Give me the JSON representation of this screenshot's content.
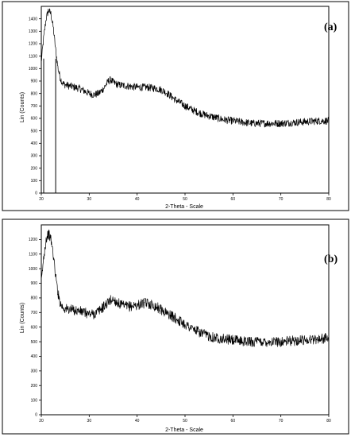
{
  "chart_data": [
    {
      "type": "line",
      "panel_label": "(a)",
      "xlabel": "2-Theta - Scale",
      "ylabel": "Lin (Counts)",
      "xlim": [
        20,
        80
      ],
      "ylim": [
        0,
        1500
      ],
      "xticks": [
        20,
        30,
        40,
        50,
        60,
        70,
        80
      ],
      "yticks": [
        0,
        100,
        200,
        300,
        400,
        500,
        600,
        700,
        800,
        900,
        1000,
        1100,
        1200,
        1300,
        1400
      ],
      "ytick_labels": [
        "0",
        "100",
        "200",
        "300",
        "400",
        "500",
        "600",
        "700",
        "800",
        "900",
        "1000",
        "1100",
        "1200",
        "1300",
        "1400"
      ],
      "grid": false,
      "vertical_markers": [
        20.5,
        23.0
      ],
      "noise_amplitude": 30,
      "x": [
        20,
        20.5,
        21,
        21.5,
        22,
        22.5,
        23,
        23.5,
        24,
        24.5,
        25,
        26,
        27,
        28,
        29,
        30,
        31,
        32,
        33,
        34,
        34.5,
        35,
        36,
        37,
        38,
        39,
        40,
        41,
        42,
        43,
        44,
        45,
        46,
        47,
        48,
        50,
        52,
        54,
        56,
        58,
        60,
        62,
        64,
        66,
        68,
        70,
        72,
        74,
        76,
        78,
        80
      ],
      "y": [
        1050,
        1250,
        1400,
        1470,
        1440,
        1330,
        1150,
        1000,
        920,
        880,
        870,
        860,
        850,
        840,
        820,
        800,
        790,
        800,
        840,
        900,
        910,
        890,
        870,
        865,
        860,
        855,
        850,
        850,
        850,
        845,
        840,
        830,
        810,
        780,
        750,
        700,
        660,
        630,
        610,
        590,
        580,
        570,
        560,
        560,
        560,
        560,
        565,
        570,
        575,
        580,
        580
      ]
    },
    {
      "type": "line",
      "panel_label": "(b)",
      "xlabel": "2-Theta - Scale",
      "ylabel": "Lin (Counts)",
      "xlim": [
        20,
        80
      ],
      "ylim": [
        0,
        1300
      ],
      "xticks": [
        20,
        30,
        40,
        50,
        60,
        70,
        80
      ],
      "yticks": [
        0,
        100,
        200,
        300,
        400,
        500,
        600,
        700,
        800,
        900,
        1000,
        1100,
        1200
      ],
      "ytick_labels": [
        "0",
        "100",
        "200",
        "300",
        "400",
        "500",
        "600",
        "700",
        "800",
        "900",
        "1000",
        "1100",
        "1200"
      ],
      "grid": false,
      "vertical_markers": [],
      "noise_amplitude": 35,
      "x": [
        20,
        20.5,
        21,
        21.5,
        22,
        22.5,
        23,
        23.5,
        24,
        24.5,
        25,
        26,
        27,
        28,
        29,
        30,
        31,
        32,
        33,
        34,
        34.5,
        35,
        36,
        37,
        38,
        39,
        40,
        41,
        42,
        43,
        44,
        45,
        46,
        47,
        48,
        50,
        52,
        54,
        56,
        58,
        60,
        62,
        64,
        66,
        68,
        70,
        72,
        74,
        76,
        78,
        80
      ],
      "y": [
        900,
        1080,
        1200,
        1240,
        1200,
        1100,
        950,
        830,
        760,
        735,
        725,
        720,
        715,
        710,
        700,
        690,
        690,
        710,
        740,
        770,
        785,
        790,
        765,
        745,
        740,
        745,
        750,
        760,
        765,
        755,
        740,
        720,
        700,
        680,
        660,
        620,
        580,
        550,
        530,
        520,
        510,
        505,
        500,
        500,
        500,
        500,
        505,
        510,
        515,
        520,
        525
      ]
    }
  ]
}
